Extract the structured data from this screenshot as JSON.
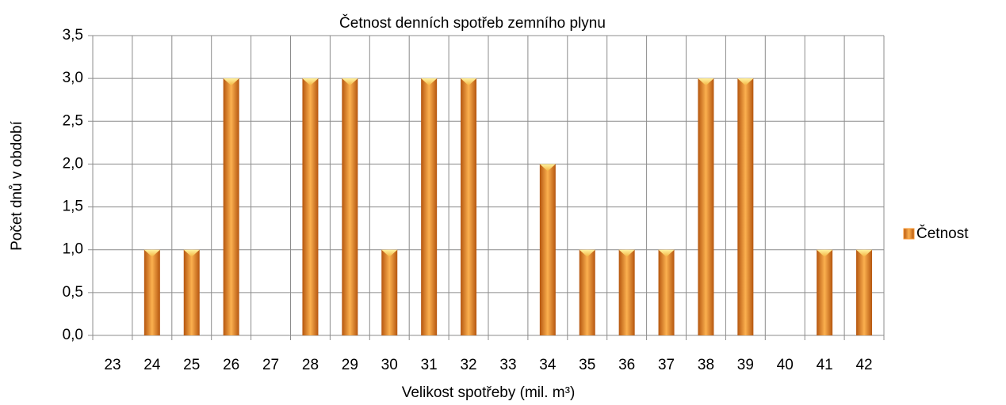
{
  "chart_data": {
    "type": "bar",
    "title": "Četnost denních spotřeb zemního plynu",
    "x_label": "Velikost spotřeby (mil. m³)",
    "y_label": "Počet dnů v období",
    "categories": [
      "23",
      "24",
      "25",
      "26",
      "27",
      "28",
      "29",
      "30",
      "31",
      "32",
      "33",
      "34",
      "35",
      "36",
      "37",
      "38",
      "39",
      "40",
      "41",
      "42"
    ],
    "series": [
      {
        "name": "Četnost",
        "color": "#f7962f",
        "values": [
          0,
          1,
          1,
          3,
          0,
          3,
          3,
          1,
          3,
          3,
          0,
          2,
          1,
          1,
          1,
          3,
          3,
          0,
          1,
          1
        ]
      }
    ],
    "ylim": [
      0,
      3.5
    ],
    "yticks": [
      {
        "value": 0,
        "label": "0,0"
      },
      {
        "value": 0.5,
        "label": "0,5"
      },
      {
        "value": 1,
        "label": "1,0"
      },
      {
        "value": 1.5,
        "label": "1,5"
      },
      {
        "value": 2,
        "label": "2,0"
      },
      {
        "value": 2.5,
        "label": "2,5"
      },
      {
        "value": 3,
        "label": "3,0"
      },
      {
        "value": 3.5,
        "label": "3,5"
      }
    ],
    "grid": true,
    "legend": "right"
  }
}
